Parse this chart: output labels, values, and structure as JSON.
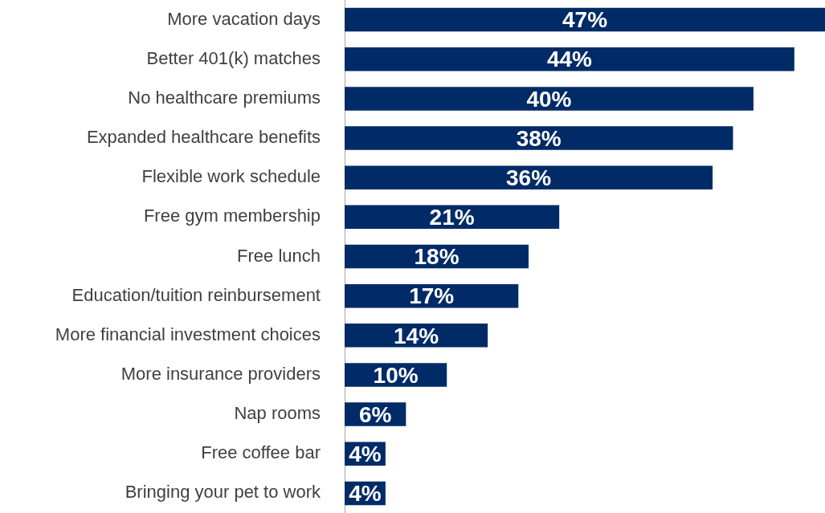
{
  "chart_data": {
    "type": "bar",
    "orientation": "horizontal",
    "data_labels": true,
    "categories": [
      "More vacation days",
      "Better 401(k) matches",
      "No healthcare premiums",
      "Expanded healthcare benefits",
      "Flexible work schedule",
      "Free gym membership",
      "Free lunch",
      "Education/tuition reinbursement",
      "More financial investment choices",
      "More insurance providers",
      "Nap rooms",
      "Free coffee bar",
      "Bringing your pet to work"
    ],
    "values": [
      47,
      44,
      40,
      38,
      36,
      21,
      18,
      17,
      14,
      10,
      6,
      4,
      4
    ],
    "value_labels": [
      "47%",
      "44%",
      "40%",
      "38%",
      "36%",
      "21%",
      "18%",
      "17%",
      "14%",
      "10%",
      "6%",
      "4%",
      "4%"
    ],
    "color": "#002b66"
  }
}
